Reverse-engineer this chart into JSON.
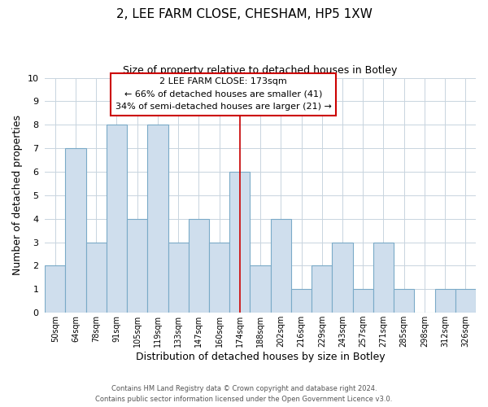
{
  "title_line1": "2, LEE FARM CLOSE, CHESHAM, HP5 1XW",
  "title_line2": "Size of property relative to detached houses in Botley",
  "xlabel": "Distribution of detached houses by size in Botley",
  "ylabel": "Number of detached properties",
  "bar_labels": [
    "50sqm",
    "64sqm",
    "78sqm",
    "91sqm",
    "105sqm",
    "119sqm",
    "133sqm",
    "147sqm",
    "160sqm",
    "174sqm",
    "188sqm",
    "202sqm",
    "216sqm",
    "229sqm",
    "243sqm",
    "257sqm",
    "271sqm",
    "285sqm",
    "298sqm",
    "312sqm",
    "326sqm"
  ],
  "bar_values": [
    2,
    7,
    3,
    8,
    4,
    8,
    3,
    4,
    3,
    6,
    2,
    4,
    1,
    2,
    3,
    1,
    3,
    1,
    0,
    1,
    1
  ],
  "bar_color": "#cfdeed",
  "bar_edge_color": "#7aaac8",
  "highlight_index": 9,
  "highlight_line_color": "#cc0000",
  "ylim": [
    0,
    10
  ],
  "yticks": [
    0,
    1,
    2,
    3,
    4,
    5,
    6,
    7,
    8,
    9,
    10
  ],
  "annotation_title": "2 LEE FARM CLOSE: 173sqm",
  "annotation_line1": "← 66% of detached houses are smaller (41)",
  "annotation_line2": "34% of semi-detached houses are larger (21) →",
  "annotation_box_color": "#ffffff",
  "annotation_box_edge": "#cc0000",
  "footer_line1": "Contains HM Land Registry data © Crown copyright and database right 2024.",
  "footer_line2": "Contains public sector information licensed under the Open Government Licence v3.0.",
  "background_color": "#ffffff",
  "grid_color": "#c8d4de"
}
